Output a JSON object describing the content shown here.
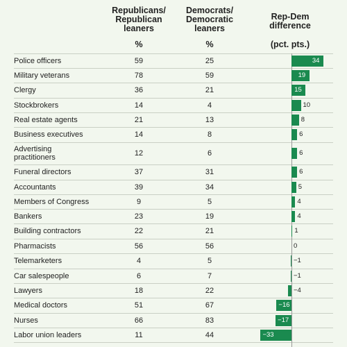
{
  "header": {
    "rep_label": "Republicans/\nRepublican\nleaners",
    "dem_label": "Democrats/\nDemocratic\nleaners",
    "diff_label": "Rep-Dem\ndifference",
    "rep_unit": "%",
    "dem_unit": "%",
    "diff_unit": "(pct. pts.)"
  },
  "colors": {
    "bar": "#1a8a4f",
    "background": "#f2f7ee"
  },
  "chart_data": {
    "type": "table",
    "columns": [
      "Republicans/Republican leaners",
      "Democrats/Democratic leaners",
      "Rep-Dem difference"
    ],
    "rows": [
      {
        "label": "Police officers",
        "rep": 59,
        "dem": 25,
        "diff": 34,
        "diff_text": "34"
      },
      {
        "label": "Military veterans",
        "rep": 78,
        "dem": 59,
        "diff": 19,
        "diff_text": "19"
      },
      {
        "label": "Clergy",
        "rep": 36,
        "dem": 21,
        "diff": 15,
        "diff_text": "15"
      },
      {
        "label": "Stockbrokers",
        "rep": 14,
        "dem": 4,
        "diff": 10,
        "diff_text": "10"
      },
      {
        "label": "Real estate agents",
        "rep": 21,
        "dem": 13,
        "diff": 8,
        "diff_text": "8"
      },
      {
        "label": "Business executives",
        "rep": 14,
        "dem": 8,
        "diff": 6,
        "diff_text": "6"
      },
      {
        "label": "Advertising\npractitioners",
        "rep": 12,
        "dem": 6,
        "diff": 6,
        "diff_text": "6"
      },
      {
        "label": "Funeral directors",
        "rep": 37,
        "dem": 31,
        "diff": 6,
        "diff_text": "6"
      },
      {
        "label": "Accountants",
        "rep": 39,
        "dem": 34,
        "diff": 5,
        "diff_text": "5"
      },
      {
        "label": "Members of Congress",
        "rep": 9,
        "dem": 5,
        "diff": 4,
        "diff_text": "4"
      },
      {
        "label": "Bankers",
        "rep": 23,
        "dem": 19,
        "diff": 4,
        "diff_text": "4"
      },
      {
        "label": "Building contractors",
        "rep": 22,
        "dem": 21,
        "diff": 1,
        "diff_text": "1"
      },
      {
        "label": "Pharmacists",
        "rep": 56,
        "dem": 56,
        "diff": 0,
        "diff_text": "0"
      },
      {
        "label": "Telemarketers",
        "rep": 4,
        "dem": 5,
        "diff": -1,
        "diff_text": "−1"
      },
      {
        "label": "Car salespeople",
        "rep": 6,
        "dem": 7,
        "diff": -1,
        "diff_text": "−1"
      },
      {
        "label": "Lawyers",
        "rep": 18,
        "dem": 22,
        "diff": -4,
        "diff_text": "−4"
      },
      {
        "label": "Medical doctors",
        "rep": 51,
        "dem": 67,
        "diff": -16,
        "diff_text": "−16"
      },
      {
        "label": "Nurses",
        "rep": 66,
        "dem": 83,
        "diff": -17,
        "diff_text": "−17"
      },
      {
        "label": "Labor union leaders",
        "rep": 11,
        "dem": 44,
        "diff": -33,
        "diff_text": "−33"
      }
    ]
  }
}
